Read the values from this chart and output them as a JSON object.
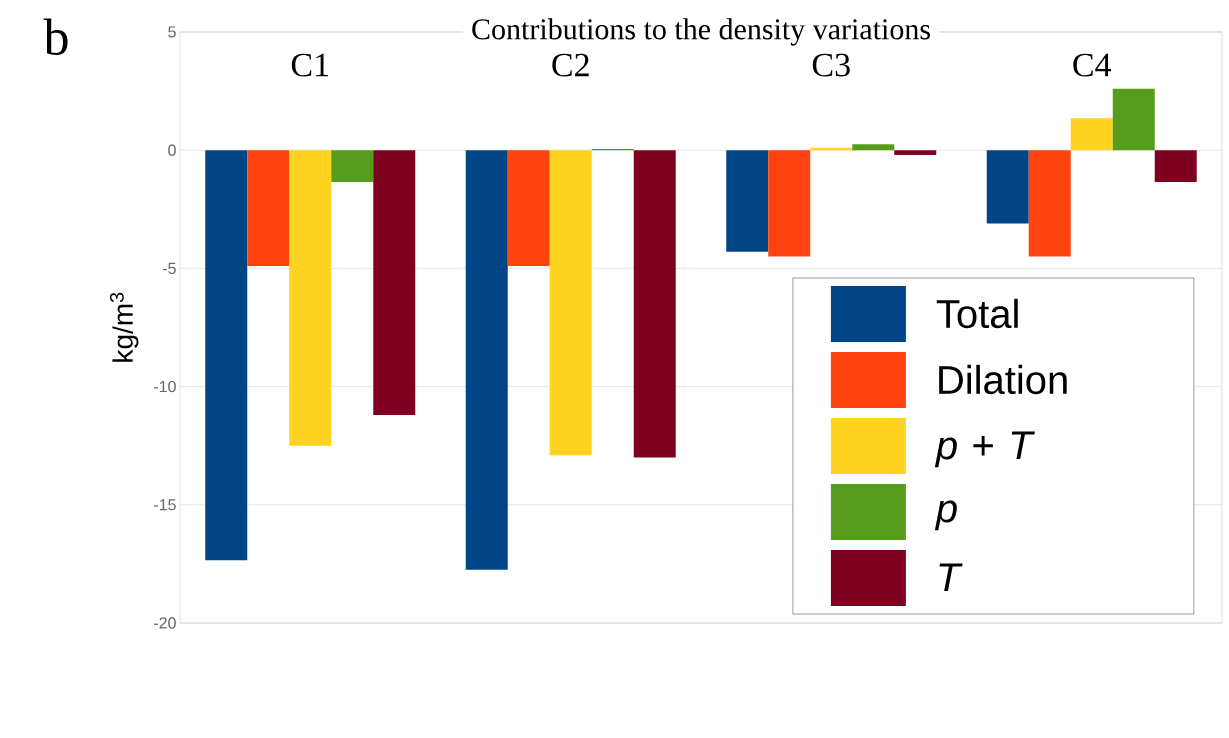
{
  "chart_data": {
    "type": "bar",
    "title": "Contributions to the density variations",
    "ylabel": "kg/m$^{3}$",
    "annotations": [
      "b"
    ],
    "categories": [
      "C1",
      "C2",
      "C3",
      "C4"
    ],
    "series": [
      {
        "name": "Total",
        "color": "#004586",
        "values": [
          -17.35,
          -17.75,
          -4.3,
          -3.1
        ]
      },
      {
        "name": "Dilation",
        "color": "#ff420e",
        "values": [
          -4.9,
          -4.9,
          -4.5,
          -4.5
        ]
      },
      {
        "name": "*p* + *T*",
        "color": "#ffd320",
        "values": [
          -12.5,
          -12.9,
          0.1,
          1.35
        ]
      },
      {
        "name": "*p*",
        "color": "#579d1c",
        "values": [
          -1.35,
          0.05,
          0.25,
          2.6
        ]
      },
      {
        "name": "*T*",
        "color": "#7e0021",
        "values": [
          -11.2,
          -13.0,
          -0.2,
          -1.35
        ]
      }
    ],
    "ylim": [
      -20,
      5
    ],
    "yticks": [
      -20,
      -15,
      -10,
      -5,
      0,
      5
    ],
    "grid": "y",
    "legend": "bottom right"
  }
}
